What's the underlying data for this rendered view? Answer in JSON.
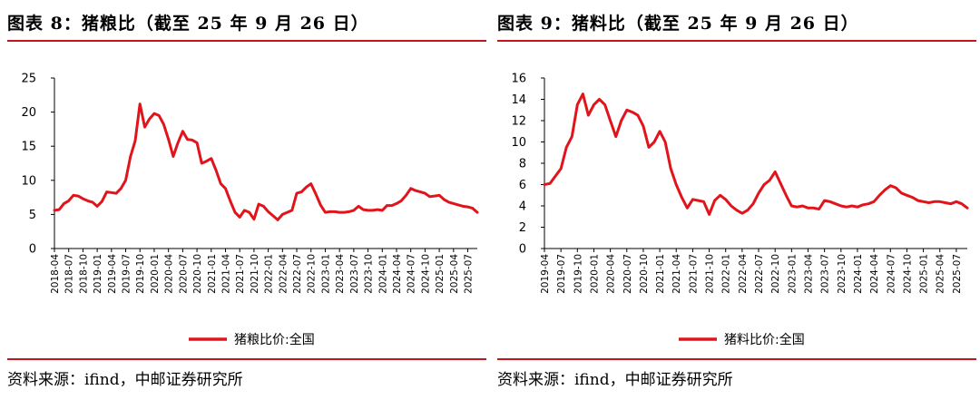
{
  "left": {
    "title": "图表 8：猪粮比（截至 25 年 9 月 26 日）",
    "source": "资料来源：ifind，中邮证券研究所",
    "legend": "猪粮比价:全国",
    "color": "#e1141c"
  },
  "right": {
    "title": "图表 9：猪料比（截至 25 年 9 月 26 日）",
    "source": "资料来源：ifind，中邮证券研究所",
    "legend": "猪料比价:全国",
    "color": "#e1141c"
  },
  "chart_data": [
    {
      "type": "line",
      "title": "图表 8：猪粮比（截至 25 年 9 月 26 日）",
      "ylim": [
        0,
        25
      ],
      "yticks": [
        0,
        5,
        10,
        15,
        20,
        25
      ],
      "xrange": [
        "2018-04",
        "2025-09"
      ],
      "xticks": [
        "2018-04",
        "2018-07",
        "2018-10",
        "2019-01",
        "2019-04",
        "2019-07",
        "2019-10",
        "2020-01",
        "2020-04",
        "2020-07",
        "2020-10",
        "2021-01",
        "2021-04",
        "2021-07",
        "2021-10",
        "2022-01",
        "2022-04",
        "2022-07",
        "2022-10",
        "2023-01",
        "2023-04",
        "2023-07",
        "2023-10",
        "2024-01",
        "2024-04",
        "2024-07",
        "2024-10",
        "2025-01",
        "2025-04",
        "2025-07"
      ],
      "series": [
        {
          "name": "猪粮比价:全国",
          "x": [
            "2018-04",
            "2018-05",
            "2018-06",
            "2018-07",
            "2018-08",
            "2018-09",
            "2018-10",
            "2018-11",
            "2018-12",
            "2019-01",
            "2019-02",
            "2019-03",
            "2019-04",
            "2019-05",
            "2019-06",
            "2019-07",
            "2019-08",
            "2019-09",
            "2019-10",
            "2019-11",
            "2019-12",
            "2020-01",
            "2020-02",
            "2020-03",
            "2020-04",
            "2020-05",
            "2020-06",
            "2020-07",
            "2020-08",
            "2020-09",
            "2020-10",
            "2020-11",
            "2020-12",
            "2021-01",
            "2021-02",
            "2021-03",
            "2021-04",
            "2021-05",
            "2021-06",
            "2021-07",
            "2021-08",
            "2021-09",
            "2021-10",
            "2021-11",
            "2021-12",
            "2022-01",
            "2022-02",
            "2022-03",
            "2022-04",
            "2022-05",
            "2022-06",
            "2022-07",
            "2022-08",
            "2022-09",
            "2022-10",
            "2022-11",
            "2022-12",
            "2023-01",
            "2023-02",
            "2023-03",
            "2023-04",
            "2023-05",
            "2023-06",
            "2023-07",
            "2023-08",
            "2023-09",
            "2023-10",
            "2023-11",
            "2023-12",
            "2024-01",
            "2024-02",
            "2024-03",
            "2024-04",
            "2024-05",
            "2024-06",
            "2024-07",
            "2024-08",
            "2024-09",
            "2024-10",
            "2024-11",
            "2024-12",
            "2025-01",
            "2025-02",
            "2025-03",
            "2025-04",
            "2025-05",
            "2025-06",
            "2025-07",
            "2025-08",
            "2025-09"
          ],
          "values": [
            5.6,
            5.7,
            6.6,
            7.0,
            7.8,
            7.7,
            7.3,
            7.0,
            6.8,
            6.2,
            6.9,
            8.3,
            8.2,
            8.1,
            8.8,
            10.0,
            13.5,
            15.8,
            21.2,
            17.8,
            19.0,
            19.8,
            19.5,
            18.2,
            16.0,
            13.5,
            15.5,
            17.2,
            16.0,
            15.9,
            15.5,
            12.5,
            12.8,
            13.2,
            11.5,
            9.5,
            8.8,
            7.0,
            5.3,
            4.6,
            5.6,
            5.3,
            4.3,
            6.5,
            6.2,
            5.4,
            4.8,
            4.2,
            5.0,
            5.3,
            5.6,
            8.1,
            8.3,
            9.0,
            9.5,
            8.0,
            6.4,
            5.3,
            5.4,
            5.4,
            5.3,
            5.3,
            5.4,
            5.6,
            6.2,
            5.7,
            5.6,
            5.6,
            5.7,
            5.6,
            6.3,
            6.3,
            6.6,
            7.0,
            7.8,
            8.8,
            8.5,
            8.3,
            8.1,
            7.6,
            7.7,
            7.8,
            7.2,
            6.8,
            6.6,
            6.4,
            6.2,
            6.1,
            5.9,
            5.3
          ]
        }
      ]
    },
    {
      "type": "line",
      "title": "图表 9：猪料比（截至 25 年 9 月 26 日）",
      "ylim": [
        0,
        16
      ],
      "yticks": [
        0,
        2,
        4,
        6,
        8,
        10,
        12,
        14,
        16
      ],
      "xrange": [
        "2019-04",
        "2025-09"
      ],
      "xticks": [
        "2019-04",
        "2019-07",
        "2019-10",
        "2020-01",
        "2020-04",
        "2020-07",
        "2020-10",
        "2021-01",
        "2021-04",
        "2021-07",
        "2021-10",
        "2022-01",
        "2022-04",
        "2022-07",
        "2022-10",
        "2023-01",
        "2023-04",
        "2023-07",
        "2023-10",
        "2024-01",
        "2024-04",
        "2024-07",
        "2024-10",
        "2025-01",
        "2025-04",
        "2025-07"
      ],
      "series": [
        {
          "name": "猪料比价:全国",
          "x": [
            "2019-04",
            "2019-05",
            "2019-06",
            "2019-07",
            "2019-08",
            "2019-09",
            "2019-10",
            "2019-11",
            "2019-12",
            "2020-01",
            "2020-02",
            "2020-03",
            "2020-04",
            "2020-05",
            "2020-06",
            "2020-07",
            "2020-08",
            "2020-09",
            "2020-10",
            "2020-11",
            "2020-12",
            "2021-01",
            "2021-02",
            "2021-03",
            "2021-04",
            "2021-05",
            "2021-06",
            "2021-07",
            "2021-08",
            "2021-09",
            "2021-10",
            "2021-11",
            "2021-12",
            "2022-01",
            "2022-02",
            "2022-03",
            "2022-04",
            "2022-05",
            "2022-06",
            "2022-07",
            "2022-08",
            "2022-09",
            "2022-10",
            "2022-11",
            "2022-12",
            "2023-01",
            "2023-02",
            "2023-03",
            "2023-04",
            "2023-05",
            "2023-06",
            "2023-07",
            "2023-08",
            "2023-09",
            "2023-10",
            "2023-11",
            "2023-12",
            "2024-01",
            "2024-02",
            "2024-03",
            "2024-04",
            "2024-05",
            "2024-06",
            "2024-07",
            "2024-08",
            "2024-09",
            "2024-10",
            "2024-11",
            "2024-12",
            "2025-01",
            "2025-02",
            "2025-03",
            "2025-04",
            "2025-05",
            "2025-06",
            "2025-07",
            "2025-08",
            "2025-09"
          ],
          "values": [
            6.0,
            6.1,
            6.8,
            7.5,
            9.5,
            10.5,
            13.5,
            14.5,
            12.5,
            13.5,
            14.0,
            13.5,
            12.0,
            10.5,
            12.0,
            13.0,
            12.8,
            12.5,
            11.5,
            9.5,
            10.0,
            11.0,
            10.0,
            7.5,
            6.0,
            4.8,
            3.8,
            4.6,
            4.5,
            4.4,
            3.2,
            4.5,
            5.0,
            4.6,
            4.0,
            3.6,
            3.3,
            3.6,
            4.2,
            5.2,
            6.0,
            6.4,
            7.2,
            6.1,
            5.0,
            4.0,
            3.9,
            4.0,
            3.8,
            3.8,
            3.7,
            4.5,
            4.4,
            4.2,
            4.0,
            3.9,
            4.0,
            3.9,
            4.1,
            4.2,
            4.4,
            5.0,
            5.5,
            5.9,
            5.7,
            5.2,
            5.0,
            4.8,
            4.5,
            4.4,
            4.3,
            4.4,
            4.4,
            4.3,
            4.2,
            4.4,
            4.2,
            3.8
          ]
        }
      ]
    }
  ]
}
